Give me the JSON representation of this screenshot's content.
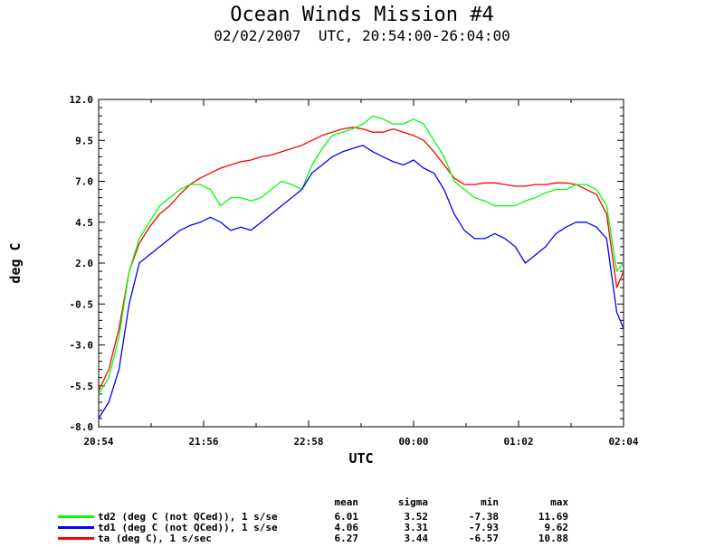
{
  "chart_data": {
    "type": "line",
    "title": "Ocean Winds Mission #4",
    "subtitle": "02/02/2007  UTC, 20:54:00-26:04:00",
    "xlabel": "UTC",
    "ylabel": "deg C",
    "xlim": [
      "20:54",
      "02:04"
    ],
    "ylim": [
      -8.0,
      12.0
    ],
    "x_ticks": [
      "20:54",
      "21:56",
      "22:58",
      "00:00",
      "01:02",
      "02:04"
    ],
    "y_ticks": [
      "-8.0",
      "-5.5",
      "-3.0",
      "-0.5",
      "2.0",
      "4.5",
      "7.0",
      "9.5",
      "12.0"
    ],
    "grid": false,
    "x": [
      "20:54",
      "21:00",
      "21:06",
      "21:12",
      "21:18",
      "21:24",
      "21:30",
      "21:36",
      "21:42",
      "21:48",
      "21:54",
      "22:00",
      "22:06",
      "22:12",
      "22:18",
      "22:24",
      "22:30",
      "22:36",
      "22:42",
      "22:48",
      "22:54",
      "23:00",
      "23:06",
      "23:12",
      "23:18",
      "23:24",
      "23:30",
      "23:36",
      "23:42",
      "23:48",
      "23:54",
      "00:00",
      "00:06",
      "00:12",
      "00:18",
      "00:24",
      "00:30",
      "00:36",
      "00:42",
      "00:48",
      "00:54",
      "01:00",
      "01:06",
      "01:12",
      "01:18",
      "01:24",
      "01:30",
      "01:36",
      "01:42",
      "01:48",
      "01:54",
      "02:00",
      "02:04"
    ],
    "series": [
      {
        "name": "td2 (deg C (not QCed)), 1 s/se",
        "color": "#00ff00",
        "values": [
          -6.0,
          -5.0,
          -2.5,
          1.5,
          3.5,
          4.5,
          5.5,
          6.0,
          6.5,
          6.8,
          6.8,
          6.5,
          5.5,
          6.0,
          6.0,
          5.8,
          6.0,
          6.5,
          7.0,
          6.8,
          6.5,
          8.0,
          9.0,
          9.8,
          10.0,
          10.2,
          10.5,
          11.0,
          10.8,
          10.5,
          10.5,
          10.8,
          10.5,
          9.5,
          8.5,
          7.0,
          6.5,
          6.0,
          5.8,
          5.5,
          5.5,
          5.5,
          5.8,
          6.0,
          6.3,
          6.5,
          6.5,
          6.8,
          6.8,
          6.5,
          5.5,
          1.5,
          2.0
        ]
      },
      {
        "name": "td1 (deg C (not QCed)), 1 s/se",
        "color": "#0000ff",
        "values": [
          -7.5,
          -6.5,
          -4.5,
          -0.5,
          2.0,
          2.5,
          3.0,
          3.5,
          4.0,
          4.3,
          4.5,
          4.8,
          4.5,
          4.0,
          4.2,
          4.0,
          4.5,
          5.0,
          5.5,
          6.0,
          6.5,
          7.5,
          8.0,
          8.5,
          8.8,
          9.0,
          9.2,
          8.8,
          8.5,
          8.2,
          8.0,
          8.3,
          7.8,
          7.5,
          6.5,
          5.0,
          4.0,
          3.5,
          3.5,
          3.8,
          3.5,
          3.0,
          2.0,
          2.5,
          3.0,
          3.8,
          4.2,
          4.5,
          4.5,
          4.2,
          3.5,
          -1.0,
          -2.0
        ]
      },
      {
        "name": "ta (deg C), 1 s/sec",
        "color": "#ff0000",
        "values": [
          -5.8,
          -4.5,
          -2.0,
          1.5,
          3.2,
          4.2,
          5.0,
          5.5,
          6.2,
          6.8,
          7.2,
          7.5,
          7.8,
          8.0,
          8.2,
          8.3,
          8.5,
          8.6,
          8.8,
          9.0,
          9.2,
          9.5,
          9.8,
          10.0,
          10.2,
          10.3,
          10.2,
          10.0,
          10.0,
          10.2,
          10.0,
          9.8,
          9.5,
          8.8,
          8.0,
          7.2,
          6.8,
          6.8,
          6.9,
          6.9,
          6.8,
          6.7,
          6.7,
          6.8,
          6.8,
          6.9,
          6.9,
          6.8,
          6.5,
          6.2,
          5.0,
          0.5,
          1.5
        ]
      }
    ],
    "stats": {
      "headers": [
        "mean",
        "sigma",
        "min",
        "max"
      ],
      "rows": [
        [
          "6.01",
          "3.52",
          "-7.38",
          "11.69"
        ],
        [
          "4.06",
          "3.31",
          "-7.93",
          "9.62"
        ],
        [
          "6.27",
          "3.44",
          "-6.57",
          "10.88"
        ]
      ]
    }
  }
}
